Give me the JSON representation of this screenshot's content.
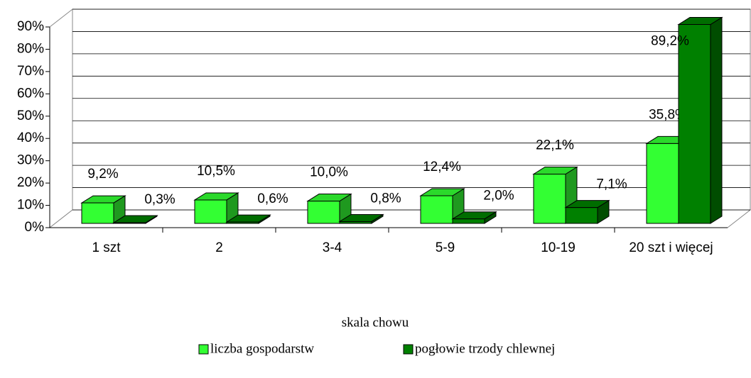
{
  "chart_data": {
    "type": "bar3d",
    "xlabel": "skala chowu",
    "categories": [
      "1 szt",
      "2",
      "3-4",
      "5-9",
      "10-19",
      "20 szt  i więcej"
    ],
    "series": [
      {
        "name": "liczba gospodarstw",
        "color": "#33ff33",
        "values": [
          9.2,
          10.5,
          10.0,
          12.4,
          22.1,
          35.8
        ],
        "value_labels": [
          "9,2%",
          "10,5%",
          "10,0%",
          "12,4%",
          "22,1%",
          "35,8%"
        ]
      },
      {
        "name": "pogłowie trzody chlewnej",
        "color": "#008000",
        "values": [
          0.3,
          0.6,
          0.8,
          2.0,
          7.1,
          89.2
        ],
        "value_labels": [
          "0,3%",
          "0,6%",
          "0,8%",
          "2,0%",
          "7,1%",
          "89,2%"
        ]
      }
    ],
    "ylim": [
      0,
      90
    ],
    "yticks": [
      {
        "value": 0,
        "label": "0%"
      },
      {
        "value": 10,
        "label": "10%"
      },
      {
        "value": 20,
        "label": "20%"
      },
      {
        "value": 30,
        "label": "30%"
      },
      {
        "value": 40,
        "label": "40%"
      },
      {
        "value": 50,
        "label": "50%"
      },
      {
        "value": 60,
        "label": "60%"
      },
      {
        "value": 70,
        "label": "70%"
      },
      {
        "value": 80,
        "label": "80%"
      },
      {
        "value": 90,
        "label": "90%"
      }
    ],
    "grid": true,
    "legend": "bottom"
  }
}
